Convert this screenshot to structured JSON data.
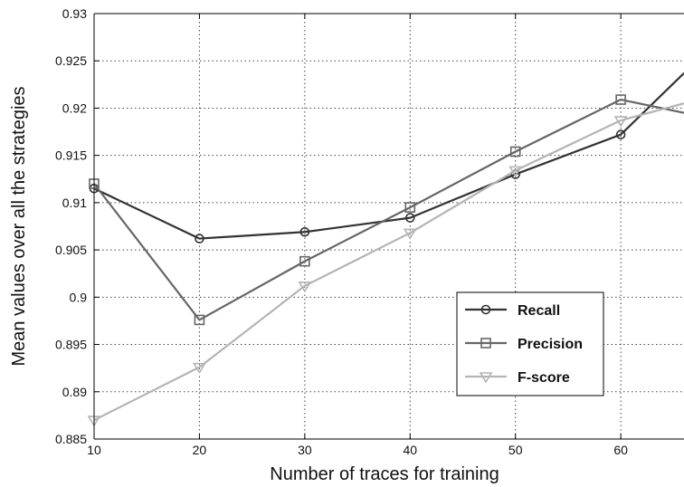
{
  "chart_data": {
    "type": "line",
    "xlabel": "Number of traces for training",
    "ylabel": "Mean values over all the strategies",
    "xlim": [
      10,
      66
    ],
    "ylim": [
      0.885,
      0.93
    ],
    "x_ticks": [
      "10",
      "20",
      "30",
      "40",
      "50",
      "60"
    ],
    "y_ticks": [
      "0.885",
      "0.89",
      "0.895",
      "0.9",
      "0.905",
      "0.91",
      "0.915",
      "0.92",
      "0.925",
      "0.93"
    ],
    "grid": true,
    "legend_position": "lower-right",
    "series": [
      {
        "name": "Recall",
        "color": "#333333",
        "marker": "circle",
        "x": [
          10,
          20,
          30,
          40,
          50,
          60,
          66
        ],
        "y": [
          0.9115,
          0.9062,
          0.9069,
          0.9084,
          0.913,
          0.9172,
          0.9237
        ]
      },
      {
        "name": "Precision",
        "color": "#666666",
        "marker": "square",
        "x": [
          10,
          20,
          30,
          40,
          50,
          60,
          66
        ],
        "y": [
          0.912,
          0.8976,
          0.9038,
          0.9095,
          0.9154,
          0.9209,
          0.9195
        ]
      },
      {
        "name": "F-score",
        "color": "#b4b4b4",
        "marker": "triangle-down",
        "x": [
          10,
          20,
          30,
          40,
          50,
          60,
          66
        ],
        "y": [
          0.887,
          0.8926,
          0.9012,
          0.9068,
          0.9134,
          0.9187,
          0.9205
        ]
      }
    ]
  }
}
